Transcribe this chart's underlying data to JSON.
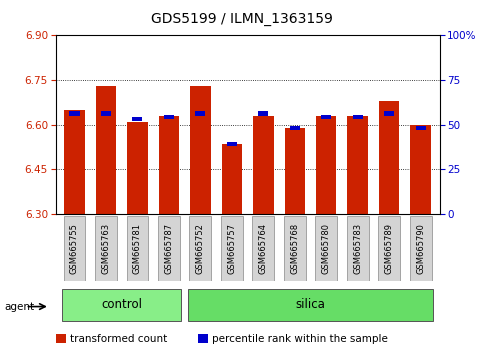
{
  "title": "GDS5199 / ILMN_1363159",
  "samples": [
    "GSM665755",
    "GSM665763",
    "GSM665781",
    "GSM665787",
    "GSM665752",
    "GSM665757",
    "GSM665764",
    "GSM665768",
    "GSM665780",
    "GSM665783",
    "GSM665789",
    "GSM665790"
  ],
  "transformed_count": [
    6.65,
    6.73,
    6.61,
    6.63,
    6.73,
    6.535,
    6.63,
    6.59,
    6.63,
    6.63,
    6.68,
    6.6
  ],
  "percentile_rank": [
    55,
    55,
    52,
    53,
    55,
    38,
    55,
    47,
    53,
    53,
    55,
    47
  ],
  "y_min": 6.3,
  "y_max": 6.9,
  "y_ticks": [
    6.3,
    6.45,
    6.6,
    6.75,
    6.9
  ],
  "y2_ticks": [
    0,
    25,
    50,
    75,
    100
  ],
  "bar_color": "#cc2200",
  "blue_color": "#0000cc",
  "control_color": "#88ee88",
  "silica_color": "#66dd66",
  "bar_bottom": 6.3,
  "bar_width": 0.65,
  "title_fontsize": 10,
  "tick_fontsize": 7.5,
  "legend_fontsize": 7.5,
  "group_label_fontsize": 8.5,
  "sample_label_fontsize": 6.0
}
